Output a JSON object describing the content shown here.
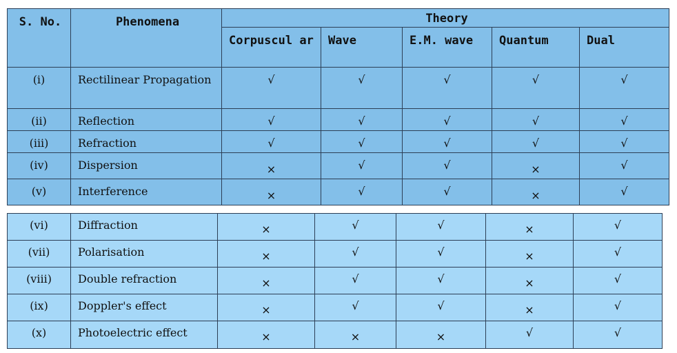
{
  "table": {
    "headers": {
      "sno": "S. No.",
      "phenomena": "Phenomena",
      "theory": "Theory",
      "theories": [
        "Corpuscul ar",
        "Wave",
        "E.M. wave",
        "Quantum",
        "Dual"
      ]
    },
    "rows": [
      {
        "sno": "(i)",
        "phenomenon": "Rectilinear Propagation",
        "marks": [
          "√",
          "√",
          "√",
          "√",
          "√"
        ]
      },
      {
        "sno": "(ii)",
        "phenomenon": "Reflection",
        "marks": [
          "√",
          "√",
          "√",
          "√",
          "√"
        ]
      },
      {
        "sno": "(iii)",
        "phenomenon": "Refraction",
        "marks": [
          "√",
          "√",
          "√",
          "√",
          "√"
        ]
      },
      {
        "sno": "(iv)",
        "phenomenon": "Dispersion",
        "marks": [
          "×",
          "√",
          "√",
          "×",
          "√"
        ]
      },
      {
        "sno": "(v)",
        "phenomenon": "Interference",
        "marks": [
          "×",
          "√",
          "√",
          "×",
          "√"
        ]
      },
      {
        "sno": "(vi)",
        "phenomenon": "Diffraction",
        "marks": [
          "×",
          "√",
          "√",
          "×",
          "√"
        ]
      },
      {
        "sno": "(vii)",
        "phenomenon": "Polarisation",
        "marks": [
          "×",
          "√",
          "√",
          "×",
          "√"
        ]
      },
      {
        "sno": "(viii)",
        "phenomenon": "Double refraction",
        "marks": [
          "×",
          "√",
          "√",
          "×",
          "√"
        ]
      },
      {
        "sno": "(ix)",
        "phenomenon": "Doppler's effect",
        "marks": [
          "×",
          "√",
          "√",
          "×",
          "√"
        ]
      },
      {
        "sno": "(x)",
        "phenomenon": "Photoelectric effect",
        "marks": [
          "×",
          "×",
          "×",
          "√",
          "√"
        ]
      }
    ]
  },
  "colors": {
    "upper_background": "#83bfe9",
    "lower_background": "#a6d8f8",
    "grid": "#2c3e55"
  }
}
